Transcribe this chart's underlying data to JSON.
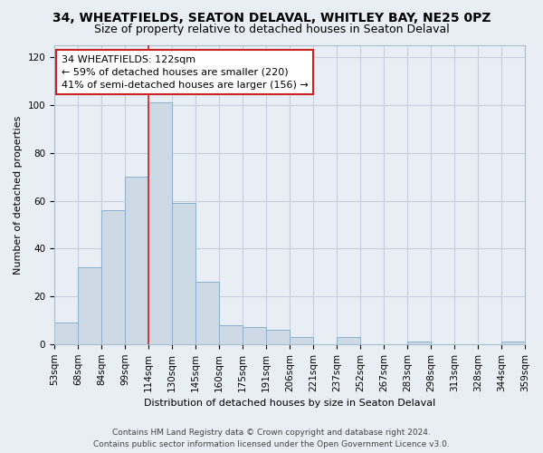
{
  "title1": "34, WHEATFIELDS, SEATON DELAVAL, WHITLEY BAY, NE25 0PZ",
  "title2": "Size of property relative to detached houses in Seaton Delaval",
  "xlabel": "Distribution of detached houses by size in Seaton Delaval",
  "ylabel": "Number of detached properties",
  "bar_heights": [
    9,
    32,
    56,
    70,
    101,
    59,
    26,
    8,
    7,
    6,
    3,
    0,
    3,
    0,
    0,
    1,
    0,
    0,
    0,
    1
  ],
  "bar_labels": [
    "53sqm",
    "68sqm",
    "84sqm",
    "99sqm",
    "114sqm",
    "130sqm",
    "145sqm",
    "160sqm",
    "175sqm",
    "191sqm",
    "206sqm",
    "221sqm",
    "237sqm",
    "252sqm",
    "267sqm",
    "283sqm",
    "298sqm",
    "313sqm",
    "328sqm",
    "344sqm",
    "359sqm"
  ],
  "bar_color": "#cdd9e5",
  "bar_edge_color": "#8ab0cb",
  "vline_color": "#cc2222",
  "annotation_line1": "34 WHEATFIELDS: 122sqm",
  "annotation_line2": "← 59% of detached houses are smaller (220)",
  "annotation_line3": "41% of semi-detached houses are larger (156) →",
  "annotation_box_color": "#ffffff",
  "annotation_box_edge": "#cc2222",
  "ylim": [
    0,
    125
  ],
  "yticks": [
    0,
    20,
    40,
    60,
    80,
    100,
    120
  ],
  "footer1": "Contains HM Land Registry data © Crown copyright and database right 2024.",
  "footer2": "Contains public sector information licensed under the Open Government Licence v3.0.",
  "background_color": "#e8eef4",
  "plot_bg_color": "#e8eef4",
  "grid_color": "#c5d0dc",
  "title_fontsize": 10,
  "subtitle_fontsize": 9,
  "axis_label_fontsize": 8,
  "tick_fontsize": 7.5,
  "footer_fontsize": 6.5,
  "annot_fontsize": 8
}
